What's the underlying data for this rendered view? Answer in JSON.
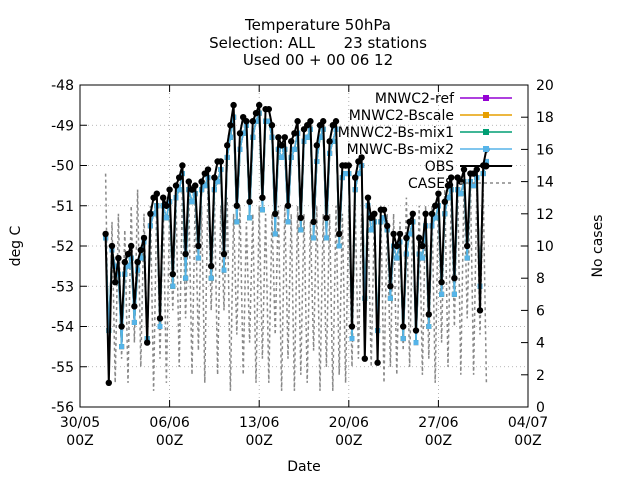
{
  "chart_data": {
    "type": "line",
    "title": [
      "Temperature 50hPa",
      "Selection: ALL      23 stations",
      "Used 00 + 00 06 12"
    ],
    "xlabel": "Date",
    "ylabel": "deg C",
    "y2label": "No cases",
    "xlim": [
      "2008-05-30 00",
      "2008-07-04 00"
    ],
    "ylim": [
      -56,
      -48
    ],
    "y2lim": [
      0,
      20
    ],
    "xticks": [
      {
        "date": "2008-05-30 00",
        "line1": "30/05",
        "line2": "00Z"
      },
      {
        "date": "2008-06-06 00",
        "line1": "06/06",
        "line2": "00Z"
      },
      {
        "date": "2008-06-13 00",
        "line1": "13/06",
        "line2": "00Z"
      },
      {
        "date": "2008-06-20 00",
        "line1": "20/06",
        "line2": "00Z"
      },
      {
        "date": "2008-06-27 00",
        "line1": "27/06",
        "line2": "00Z"
      },
      {
        "date": "2008-07-04 00",
        "line1": "04/07",
        "line2": "00Z"
      }
    ],
    "yticks": [
      "-48",
      "-49",
      "-50",
      "-51",
      "-52",
      "-53",
      "-54",
      "-55",
      "-56"
    ],
    "y2ticks": [
      "20",
      "18",
      "16",
      "14",
      "12",
      "10",
      "8",
      "6",
      "4",
      "2",
      "0"
    ],
    "legend_position": "top-right",
    "grid": true,
    "x": [
      "2008-06-01 00",
      "2008-06-01 06",
      "2008-06-01 12",
      "2008-06-01 18",
      "2008-06-02 00",
      "2008-06-02 06",
      "2008-06-02 12",
      "2008-06-02 18",
      "2008-06-03 00",
      "2008-06-03 06",
      "2008-06-03 12",
      "2008-06-03 18",
      "2008-06-04 00",
      "2008-06-04 06",
      "2008-06-04 12",
      "2008-06-04 18",
      "2008-06-05 00",
      "2008-06-05 06",
      "2008-06-05 12",
      "2008-06-05 18",
      "2008-06-06 00",
      "2008-06-06 06",
      "2008-06-06 12",
      "2008-06-06 18",
      "2008-06-07 00",
      "2008-06-07 06",
      "2008-06-07 12",
      "2008-06-07 18",
      "2008-06-08 00",
      "2008-06-08 06",
      "2008-06-08 12",
      "2008-06-08 18",
      "2008-06-09 00",
      "2008-06-09 06",
      "2008-06-09 12",
      "2008-06-09 18",
      "2008-06-10 00",
      "2008-06-10 06",
      "2008-06-10 12",
      "2008-06-10 18",
      "2008-06-11 00",
      "2008-06-11 06",
      "2008-06-11 12",
      "2008-06-11 18",
      "2008-06-12 00",
      "2008-06-12 06",
      "2008-06-12 12",
      "2008-06-12 18",
      "2008-06-13 00",
      "2008-06-13 06",
      "2008-06-13 12",
      "2008-06-13 18",
      "2008-06-14 00",
      "2008-06-14 06",
      "2008-06-14 12",
      "2008-06-14 18",
      "2008-06-15 00",
      "2008-06-15 06",
      "2008-06-15 12",
      "2008-06-15 18",
      "2008-06-16 00",
      "2008-06-16 06",
      "2008-06-16 12",
      "2008-06-16 18",
      "2008-06-17 00",
      "2008-06-17 06",
      "2008-06-17 12",
      "2008-06-17 18",
      "2008-06-18 00",
      "2008-06-18 06",
      "2008-06-18 12",
      "2008-06-18 18",
      "2008-06-19 00",
      "2008-06-19 06",
      "2008-06-19 12",
      "2008-06-19 18",
      "2008-06-20 00",
      "2008-06-20 06",
      "2008-06-20 12",
      "2008-06-20 18",
      "2008-06-21 00",
      "2008-06-21 06",
      "2008-06-21 12",
      "2008-06-21 18",
      "2008-06-22 00",
      "2008-06-22 06",
      "2008-06-22 12",
      "2008-06-22 18",
      "2008-06-23 00",
      "2008-06-23 06",
      "2008-06-23 12",
      "2008-06-23 18",
      "2008-06-24 00",
      "2008-06-24 06",
      "2008-06-24 12",
      "2008-06-24 18",
      "2008-06-25 00",
      "2008-06-25 06",
      "2008-06-25 12",
      "2008-06-25 18",
      "2008-06-26 00",
      "2008-06-26 06",
      "2008-06-26 12",
      "2008-06-26 18",
      "2008-06-27 00",
      "2008-06-27 06",
      "2008-06-27 12",
      "2008-06-27 18",
      "2008-06-28 00",
      "2008-06-28 06",
      "2008-06-28 12",
      "2008-06-28 18",
      "2008-06-29 00",
      "2008-06-29 06",
      "2008-06-29 12",
      "2008-06-29 18",
      "2008-06-30 00",
      "2008-06-30 06",
      "2008-06-30 12",
      "2008-06-30 18"
    ],
    "series": [
      {
        "name": "MNWC2-ref",
        "axis": "y",
        "color": "#9400d3",
        "marker": "square",
        "values": [
          -51.8,
          -54.1,
          -52.1,
          -52.5,
          -52.7,
          -54.5,
          -52.7,
          -52.5,
          -52.3,
          -53.9,
          -52.6,
          -52.3,
          -51.9,
          -54.3,
          -51.5,
          -51.2,
          -51.0,
          -54.0,
          -51.0,
          -51.3,
          -50.9,
          -53.0,
          -50.8,
          -50.6,
          -50.2,
          -52.8,
          -50.6,
          -50.9,
          -50.7,
          -52.3,
          -50.6,
          -50.5,
          -50.3,
          -52.8,
          -50.6,
          -50.4,
          -50.1,
          -52.6,
          -49.8,
          -49.3,
          -48.8,
          -51.4,
          -49.6,
          -49.2,
          -49.0,
          -51.3,
          -49.3,
          -48.9,
          -48.7,
          -51.1,
          -48.9,
          -48.9,
          -49.3,
          -51.7,
          -49.6,
          -49.8,
          -49.6,
          -51.4,
          -49.8,
          -49.6,
          -49.2,
          -51.6,
          -49.4,
          -49.3,
          -49.1,
          -51.8,
          -49.9,
          -49.3,
          -49.1,
          -51.8,
          -49.7,
          -49.4,
          -49.1,
          -52.0,
          -50.3,
          -50.2,
          -50.2,
          -54.3,
          -50.6,
          -50.2,
          -50.0,
          -53.3,
          -51.0,
          -51.6,
          -51.4,
          -54.1,
          -51.4,
          -51.3,
          -51.6,
          -53.3,
          -52.0,
          -52.3,
          -51.9,
          -54.3,
          -52.2,
          -51.7,
          -51.4,
          -54.4,
          -52.2,
          -52.3,
          -51.5,
          -54.0,
          -51.5,
          -51.3,
          -51.0,
          -53.2,
          -51.2,
          -50.8,
          -50.6,
          -53.2,
          -50.6,
          -50.7,
          -50.4,
          -52.3,
          -50.4,
          -50.5,
          -50.3,
          -53.0,
          -50.2,
          -49.9
        ]
      },
      {
        "name": "MNWC2-Bscale",
        "axis": "y",
        "color": "#e69f00",
        "marker": "square",
        "values": [
          -51.8,
          -54.1,
          -52.1,
          -52.5,
          -52.7,
          -54.5,
          -52.7,
          -52.5,
          -52.3,
          -53.9,
          -52.6,
          -52.3,
          -51.9,
          -54.3,
          -51.5,
          -51.2,
          -51.0,
          -54.0,
          -51.0,
          -51.3,
          -50.9,
          -53.0,
          -50.8,
          -50.6,
          -50.2,
          -52.8,
          -50.6,
          -50.9,
          -50.7,
          -52.3,
          -50.6,
          -50.5,
          -50.3,
          -52.8,
          -50.6,
          -50.4,
          -50.1,
          -52.6,
          -49.8,
          -49.3,
          -48.8,
          -51.4,
          -49.6,
          -49.2,
          -49.0,
          -51.3,
          -49.3,
          -48.9,
          -48.7,
          -51.1,
          -48.9,
          -48.9,
          -49.3,
          -51.7,
          -49.6,
          -49.8,
          -49.6,
          -51.4,
          -49.8,
          -49.6,
          -49.2,
          -51.6,
          -49.4,
          -49.3,
          -49.1,
          -51.8,
          -49.9,
          -49.3,
          -49.1,
          -51.8,
          -49.7,
          -49.4,
          -49.1,
          -52.0,
          -50.3,
          -50.2,
          -50.2,
          -54.3,
          -50.6,
          -50.2,
          -50.0,
          -53.3,
          -51.0,
          -51.6,
          -51.4,
          -54.1,
          -51.4,
          -51.3,
          -51.6,
          -53.3,
          -52.0,
          -52.3,
          -51.9,
          -54.3,
          -52.2,
          -51.7,
          -51.4,
          -54.4,
          -52.2,
          -52.3,
          -51.5,
          -54.0,
          -51.5,
          -51.3,
          -51.0,
          -53.2,
          -51.2,
          -50.8,
          -50.6,
          -53.2,
          -50.6,
          -50.7,
          -50.4,
          -52.3,
          -50.4,
          -50.5,
          -50.3,
          -53.0,
          -50.2,
          -49.9
        ]
      },
      {
        "name": "MNWC2-Bs-mix1",
        "axis": "y",
        "color": "#009e73",
        "marker": "square",
        "values": [
          -51.8,
          -54.1,
          -52.1,
          -52.5,
          -52.7,
          -54.5,
          -52.7,
          -52.5,
          -52.3,
          -53.9,
          -52.6,
          -52.3,
          -51.9,
          -54.3,
          -51.5,
          -51.2,
          -51.0,
          -54.0,
          -51.0,
          -51.3,
          -50.9,
          -53.0,
          -50.8,
          -50.6,
          -50.2,
          -52.8,
          -50.6,
          -50.9,
          -50.7,
          -52.3,
          -50.6,
          -50.5,
          -50.3,
          -52.8,
          -50.6,
          -50.4,
          -50.1,
          -52.6,
          -49.8,
          -49.3,
          -48.8,
          -51.4,
          -49.6,
          -49.2,
          -49.0,
          -51.3,
          -49.3,
          -48.9,
          -48.7,
          -51.1,
          -48.9,
          -48.9,
          -49.3,
          -51.7,
          -49.6,
          -49.8,
          -49.6,
          -51.4,
          -49.8,
          -49.6,
          -49.2,
          -51.6,
          -49.4,
          -49.3,
          -49.1,
          -51.8,
          -49.9,
          -49.3,
          -49.1,
          -51.8,
          -49.7,
          -49.4,
          -49.1,
          -52.0,
          -50.3,
          -50.2,
          -50.2,
          -54.3,
          -50.6,
          -50.2,
          -50.0,
          -53.3,
          -51.0,
          -51.6,
          -51.4,
          -54.1,
          -51.4,
          -51.3,
          -51.6,
          -53.3,
          -52.0,
          -52.3,
          -51.9,
          -54.3,
          -52.2,
          -51.7,
          -51.4,
          -54.4,
          -52.2,
          -52.3,
          -51.5,
          -54.0,
          -51.5,
          -51.3,
          -51.0,
          -53.2,
          -51.2,
          -50.8,
          -50.6,
          -53.2,
          -50.6,
          -50.7,
          -50.4,
          -52.3,
          -50.4,
          -50.5,
          -50.3,
          -53.0,
          -50.2,
          -49.9
        ]
      },
      {
        "name": "MNWC-Bs-mix2",
        "axis": "y",
        "color": "#56b4e9",
        "marker": "square",
        "values": [
          -51.8,
          -54.1,
          -52.1,
          -52.5,
          -52.7,
          -54.5,
          -52.7,
          -52.5,
          -52.3,
          -53.9,
          -52.6,
          -52.3,
          -51.9,
          -54.3,
          -51.5,
          -51.2,
          -51.0,
          -54.0,
          -51.0,
          -51.3,
          -50.9,
          -53.0,
          -50.8,
          -50.6,
          -50.2,
          -52.8,
          -50.6,
          -50.9,
          -50.7,
          -52.3,
          -50.6,
          -50.5,
          -50.3,
          -52.8,
          -50.6,
          -50.4,
          -50.1,
          -52.6,
          -49.8,
          -49.3,
          -48.8,
          -51.4,
          -49.6,
          -49.2,
          -49.0,
          -51.3,
          -49.3,
          -48.9,
          -48.7,
          -51.1,
          -48.9,
          -48.9,
          -49.3,
          -51.7,
          -49.6,
          -49.8,
          -49.6,
          -51.4,
          -49.8,
          -49.6,
          -49.2,
          -51.6,
          -49.4,
          -49.3,
          -49.1,
          -51.8,
          -49.9,
          -49.3,
          -49.1,
          -51.8,
          -49.7,
          -49.4,
          -49.1,
          -52.0,
          -50.3,
          -50.2,
          -50.2,
          -54.3,
          -50.6,
          -50.2,
          -50.0,
          -53.3,
          -51.0,
          -51.6,
          -51.4,
          -54.1,
          -51.4,
          -51.3,
          -51.6,
          -53.3,
          -52.0,
          -52.3,
          -51.9,
          -54.3,
          -52.2,
          -51.7,
          -51.4,
          -54.4,
          -52.2,
          -52.3,
          -51.5,
          -54.0,
          -51.5,
          -51.3,
          -51.0,
          -53.2,
          -51.2,
          -50.8,
          -50.6,
          -53.2,
          -50.6,
          -50.7,
          -50.4,
          -52.3,
          -50.4,
          -50.5,
          -50.3,
          -53.0,
          -50.2,
          -49.9
        ]
      },
      {
        "name": "OBS",
        "axis": "y",
        "color": "#000000",
        "marker": "circle",
        "values": [
          -51.7,
          -55.4,
          -52.0,
          -52.9,
          -52.3,
          -54.0,
          -52.4,
          -52.2,
          -52.0,
          -53.5,
          -52.4,
          -52.1,
          -51.8,
          -54.4,
          -51.2,
          -50.8,
          -50.7,
          -53.8,
          -50.8,
          -51.0,
          -50.6,
          -52.7,
          -50.5,
          -50.3,
          -50.0,
          -52.2,
          -50.4,
          -50.6,
          -50.5,
          -52.0,
          -50.4,
          -50.2,
          -50.1,
          -52.5,
          -50.3,
          -49.9,
          -49.9,
          -52.2,
          -49.5,
          -49.0,
          -48.5,
          -51.0,
          -49.2,
          -48.8,
          -48.9,
          -50.9,
          -48.9,
          -48.7,
          -48.5,
          -50.8,
          -48.6,
          -48.6,
          -49.0,
          -51.2,
          -49.3,
          -49.5,
          -49.3,
          -51.0,
          -49.4,
          -49.2,
          -48.9,
          -51.3,
          -49.1,
          -49.0,
          -48.9,
          -51.4,
          -49.5,
          -49.0,
          -48.9,
          -51.3,
          -49.4,
          -49.0,
          -48.9,
          -51.7,
          -50.0,
          -50.0,
          -50.0,
          -54.0,
          -50.3,
          -49.9,
          -49.8,
          -54.8,
          -50.8,
          -51.3,
          -51.2,
          -54.9,
          -51.1,
          -51.1,
          -51.5,
          -53.0,
          -51.7,
          -52.0,
          -51.7,
          -54.0,
          -51.8,
          -51.4,
          -51.2,
          -54.1,
          -51.8,
          -52.0,
          -51.2,
          -53.7,
          -51.2,
          -51.0,
          -50.7,
          -52.9,
          -50.9,
          -50.5,
          -50.3,
          -52.8,
          -50.3,
          -50.4,
          -50.1,
          -52.0,
          -50.2,
          -50.2,
          -50.1,
          -53.6,
          -50.0,
          -49.6
        ]
      },
      {
        "name": "CASES",
        "axis": "y2",
        "color": "#888888",
        "marker": "none",
        "values": [
          14.5,
          2.0,
          11.5,
          1.5,
          12.0,
          3.0,
          11.0,
          1.5,
          12.5,
          4.0,
          13.5,
          2.5,
          12.0,
          4.0,
          12.5,
          1.0,
          13.0,
          3.0,
          12.5,
          1.5,
          12.5,
          6.0,
          13.0,
          2.5,
          13.5,
          5.5,
          13.0,
          2.0,
          13.0,
          3.5,
          12.5,
          1.5,
          14.0,
          6.0,
          13.0,
          2.0,
          12.5,
          6.0,
          13.0,
          1.0,
          12.0,
          4.5,
          12.5,
          2.0,
          11.5,
          4.0,
          12.0,
          1.5,
          12.5,
          3.0,
          12.0,
          1.5,
          12.0,
          4.5,
          12.5,
          1.0,
          12.5,
          3.0,
          12.0,
          1.0,
          12.5,
          2.0,
          12.0,
          1.5,
          11.5,
          3.5,
          12.5,
          1.0,
          12.0,
          2.5,
          12.0,
          1.0,
          12.5,
          2.0,
          12.0,
          1.5,
          12.5,
          2.5,
          12.5,
          3.0,
          12.0,
          3.5,
          11.5,
          2.5,
          12.0,
          3.5,
          12.5,
          1.5,
          12.0,
          2.5,
          12.0,
          2.0,
          11.5,
          3.5,
          13.0,
          2.5,
          12.0,
          4.0,
          12.5,
          2.0,
          12.5,
          3.0,
          12.5,
          1.5,
          13.0,
          4.0,
          13.5,
          2.5,
          13.0,
          5.0,
          14.0,
          2.0,
          14.0,
          5.5,
          14.0,
          2.0,
          13.5,
          4.5,
          13.5,
          1.5
        ]
      }
    ]
  }
}
